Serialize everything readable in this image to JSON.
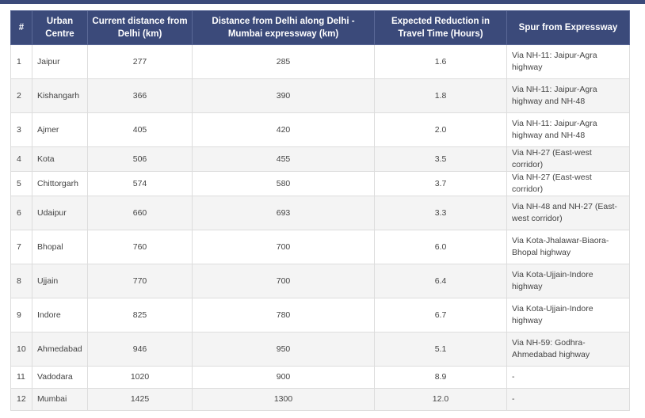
{
  "table": {
    "headers": [
      "#",
      "Urban Centre",
      "Current distance from Delhi (km)",
      "Distance from Delhi along Delhi - Mumbai expressway (km)",
      "Expected Reduction in Travel Time (Hours)",
      "Spur from Expressway"
    ],
    "rows": [
      {
        "idx": "1",
        "centre": "Jaipur",
        "current": "277",
        "expressway": "285",
        "reduction": "1.6",
        "spur": "Via NH-11: Jaipur-Agra highway"
      },
      {
        "idx": "2",
        "centre": "Kishangarh",
        "current": "366",
        "expressway": "390",
        "reduction": "1.8",
        "spur": "Via NH-11: Jaipur-Agra highway and NH-48"
      },
      {
        "idx": "3",
        "centre": "Ajmer",
        "current": "405",
        "expressway": "420",
        "reduction": "2.0",
        "spur": "Via NH-11: Jaipur-Agra highway and NH-48"
      },
      {
        "idx": "4",
        "centre": "Kota",
        "current": "506",
        "expressway": "455",
        "reduction": "3.5",
        "spur": "Via NH-27 (East-west corridor)"
      },
      {
        "idx": "5",
        "centre": "Chittorgarh",
        "current": "574",
        "expressway": "580",
        "reduction": "3.7",
        "spur": "Via NH-27 (East-west corridor)"
      },
      {
        "idx": "6",
        "centre": "Udaipur",
        "current": "660",
        "expressway": "693",
        "reduction": "3.3",
        "spur": "Via NH-48 and NH-27 (East-west corridor)"
      },
      {
        "idx": "7",
        "centre": "Bhopal",
        "current": "760",
        "expressway": "700",
        "reduction": "6.0",
        "spur": "Via Kota-Jhalawar-Biaora-Bhopal highway"
      },
      {
        "idx": "8",
        "centre": "Ujjain",
        "current": "770",
        "expressway": "700",
        "reduction": "6.4",
        "spur": "Via Kota-Ujjain-Indore highway"
      },
      {
        "idx": "9",
        "centre": "Indore",
        "current": "825",
        "expressway": "780",
        "reduction": "6.7",
        "spur": "Via Kota-Ujjain-Indore highway"
      },
      {
        "idx": "10",
        "centre": "Ahmedabad",
        "current": "946",
        "expressway": "950",
        "reduction": "5.1",
        "spur": "Via NH-59: Godhra-Ahmedabad highway"
      },
      {
        "idx": "11",
        "centre": "Vadodara",
        "current": "1020",
        "expressway": "900",
        "reduction": "8.9",
        "spur": "-"
      },
      {
        "idx": "12",
        "centre": "Mumbai",
        "current": "1425",
        "expressway": "1300",
        "reduction": "12.0",
        "spur": "-"
      }
    ]
  },
  "colors": {
    "header_bg": "#3b4a7a",
    "header_text": "#ffffff",
    "row_alt_bg": "#f4f4f4",
    "border": "#dddddd"
  }
}
